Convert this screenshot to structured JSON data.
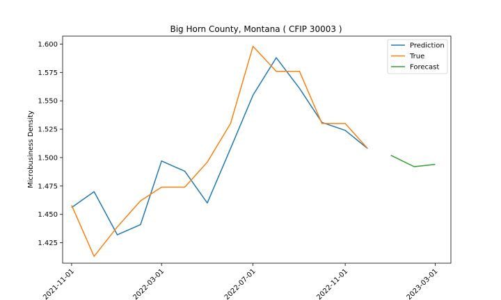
{
  "chart_data": {
    "type": "line",
    "title": "Big Horn County, Montana ( CFIP 30003 )",
    "xlabel": "",
    "ylabel": "Microbusiness Density",
    "ylim": [
      1.407,
      1.607
    ],
    "yticks": [
      "1.425",
      "1.450",
      "1.475",
      "1.500",
      "1.525",
      "1.550",
      "1.575",
      "1.600"
    ],
    "xticks": [
      "2021-11-01",
      "2022-03-01",
      "2022-07-01",
      "2022-11-01",
      "2023-03-01"
    ],
    "x_range": [
      "2021-10-20",
      "2023-03-22"
    ],
    "legend_position": "top-right",
    "grid": false,
    "series": [
      {
        "name": "Prediction",
        "color": "#1f77b4",
        "points": [
          {
            "x": "2021-11-01",
            "y": 1.456
          },
          {
            "x": "2021-12-01",
            "y": 1.47
          },
          {
            "x": "2022-01-01",
            "y": 1.432
          },
          {
            "x": "2022-02-01",
            "y": 1.441
          },
          {
            "x": "2022-03-01",
            "y": 1.497
          },
          {
            "x": "2022-04-01",
            "y": 1.488
          },
          {
            "x": "2022-05-01",
            "y": 1.46
          },
          {
            "x": "2022-06-01",
            "y": 1.508
          },
          {
            "x": "2022-07-01",
            "y": 1.555
          },
          {
            "x": "2022-08-01",
            "y": 1.588
          },
          {
            "x": "2022-09-01",
            "y": 1.561
          },
          {
            "x": "2022-10-01",
            "y": 1.531
          },
          {
            "x": "2022-11-01",
            "y": 1.524
          },
          {
            "x": "2022-12-01",
            "y": 1.508
          }
        ]
      },
      {
        "name": "True",
        "color": "#ff7f0e",
        "points": [
          {
            "x": "2021-11-01",
            "y": 1.458
          },
          {
            "x": "2021-12-01",
            "y": 1.413
          },
          {
            "x": "2022-01-01",
            "y": 1.439
          },
          {
            "x": "2022-02-01",
            "y": 1.462
          },
          {
            "x": "2022-03-01",
            "y": 1.474
          },
          {
            "x": "2022-04-01",
            "y": 1.474
          },
          {
            "x": "2022-05-01",
            "y": 1.496
          },
          {
            "x": "2022-06-01",
            "y": 1.53
          },
          {
            "x": "2022-07-01",
            "y": 1.598
          },
          {
            "x": "2022-08-01",
            "y": 1.576
          },
          {
            "x": "2022-09-01",
            "y": 1.576
          },
          {
            "x": "2022-10-01",
            "y": 1.53
          },
          {
            "x": "2022-11-01",
            "y": 1.53
          },
          {
            "x": "2022-12-01",
            "y": 1.508
          }
        ]
      },
      {
        "name": "Forecast",
        "color": "#2ca02c",
        "points": [
          {
            "x": "2023-01-01",
            "y": 1.502
          },
          {
            "x": "2023-02-01",
            "y": 1.492
          },
          {
            "x": "2023-03-01",
            "y": 1.494
          }
        ]
      }
    ]
  }
}
